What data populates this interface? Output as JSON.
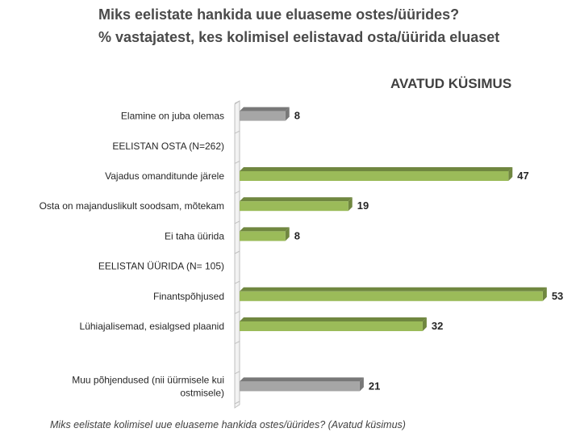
{
  "title_line1": "Miks eelistate hankida uue eluaseme ostes/üürides?",
  "title_line2": "% vastajatest, kes kolimisel eelistavad osta/üürida eluaset",
  "annotation": "AVATUD KÜSIMUS",
  "caption": "Miks eelistate kolimisel uue eluaseme hankida ostes/üürides? (Avatud küsimus)",
  "colors": {
    "green": "#9bbb59",
    "gray": "#a6a6a6"
  },
  "chart_data": {
    "type": "bar",
    "orientation": "horizontal",
    "categories": [
      [
        "Elamine on juba olemas"
      ],
      [
        "EELISTAN OSTA (N=262)"
      ],
      [
        "Vajadus omanditunde järele"
      ],
      [
        "Osta on majanduslikult soodsam, mõtekam"
      ],
      [
        "Ei taha üürida"
      ],
      [
        "EELISTAN ÜÜRIDA (N= 105)"
      ],
      [
        "Finantspõhjused"
      ],
      [
        "Lühiajalisemad, esialgsed plaanid"
      ],
      [
        ""
      ],
      [
        "Muu põhjendused (nii üürmisele kui",
        "ostmisele)"
      ]
    ],
    "values": [
      8,
      null,
      47,
      19,
      8,
      null,
      53,
      32,
      null,
      21
    ],
    "bar_colors": [
      "gray",
      null,
      "green",
      "green",
      "green",
      null,
      "green",
      "green",
      null,
      "gray"
    ],
    "xlim": [
      0,
      55
    ],
    "data_labels": true
  }
}
